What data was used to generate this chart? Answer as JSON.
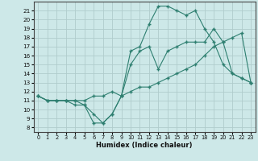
{
  "xlabel": "Humidex (Indice chaleur)",
  "bg_color": "#cde8e8",
  "grid_color": "#b0cccc",
  "line_color": "#2e7f70",
  "x": [
    0,
    1,
    2,
    3,
    4,
    5,
    6,
    7,
    8,
    9,
    10,
    11,
    12,
    13,
    14,
    15,
    16,
    17,
    18,
    19,
    20,
    21,
    22,
    23
  ],
  "line1": [
    11.5,
    11.0,
    11.0,
    11.0,
    11.0,
    10.5,
    8.5,
    8.5,
    9.5,
    11.5,
    16.5,
    17.0,
    19.5,
    21.5,
    21.5,
    21.0,
    20.5,
    21.0,
    19.0,
    17.5,
    15.0,
    14.0,
    13.5,
    13.0
  ],
  "line2": [
    11.5,
    11.0,
    11.0,
    11.0,
    10.5,
    10.5,
    9.5,
    8.5,
    9.5,
    11.5,
    15.0,
    16.5,
    17.0,
    14.5,
    16.5,
    17.0,
    17.5,
    17.5,
    17.5,
    19.0,
    17.5,
    14.0,
    13.5,
    13.0
  ],
  "line3": [
    11.5,
    11.0,
    11.0,
    11.0,
    11.0,
    11.0,
    11.5,
    11.5,
    12.0,
    11.5,
    12.0,
    12.5,
    12.5,
    13.0,
    13.5,
    14.0,
    14.5,
    15.0,
    16.0,
    17.0,
    17.5,
    18.0,
    18.5,
    13.0
  ],
  "xlim": [
    -0.5,
    23.5
  ],
  "ylim": [
    7.5,
    22.0
  ],
  "yticks": [
    8,
    9,
    10,
    11,
    12,
    13,
    14,
    15,
    16,
    17,
    18,
    19,
    20,
    21
  ],
  "xticks": [
    0,
    1,
    2,
    3,
    4,
    5,
    6,
    7,
    8,
    9,
    10,
    11,
    12,
    13,
    14,
    15,
    16,
    17,
    18,
    19,
    20,
    21,
    22,
    23
  ]
}
